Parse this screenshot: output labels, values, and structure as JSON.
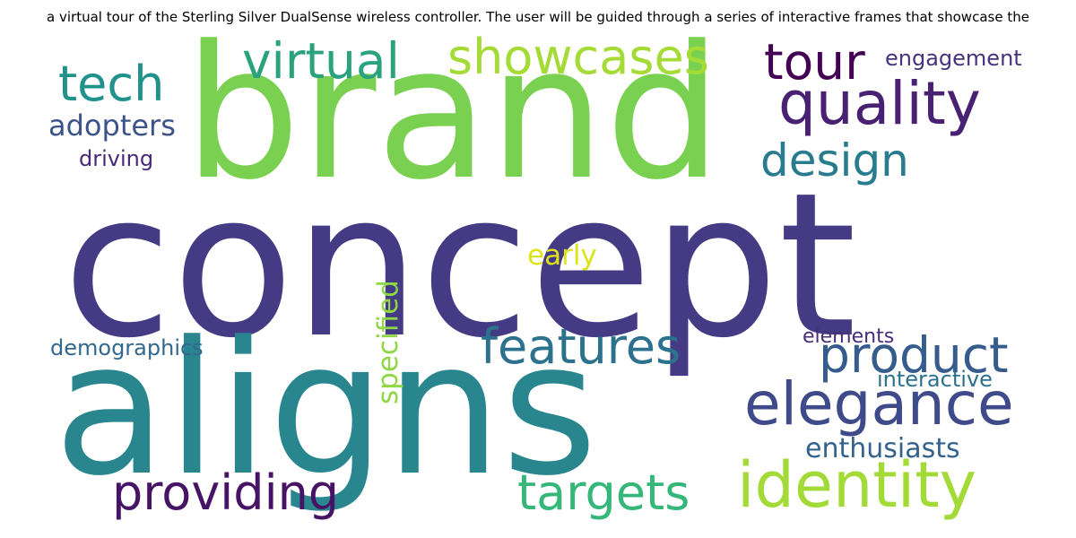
{
  "caption": "a virtual tour of the Sterling Silver DualSense wireless controller. The user will be guided through a series of interactive frames that showcase the",
  "words": [
    {
      "id": "brand",
      "text": "brand",
      "color": "#7ad151"
    },
    {
      "id": "concept",
      "text": "concept",
      "color": "#443b84"
    },
    {
      "id": "aligns",
      "text": "aligns",
      "color": "#29868e"
    },
    {
      "id": "identity",
      "text": "identity",
      "color": "#a2da37"
    },
    {
      "id": "elegance",
      "text": "elegance",
      "color": "#3e4a89"
    },
    {
      "id": "quality",
      "text": "quality",
      "color": "#482173"
    },
    {
      "id": "product",
      "text": "product",
      "color": "#365c8d"
    },
    {
      "id": "features",
      "text": "features",
      "color": "#2c728e"
    },
    {
      "id": "providing",
      "text": "providing",
      "color": "#471365"
    },
    {
      "id": "targets",
      "text": "targets",
      "color": "#35b779"
    },
    {
      "id": "virtual",
      "text": "virtual",
      "color": "#2aa27e"
    },
    {
      "id": "showcases",
      "text": "showcases",
      "color": "#a5db36"
    },
    {
      "id": "tech",
      "text": "tech",
      "color": "#21918c"
    },
    {
      "id": "tour",
      "text": "tour",
      "color": "#440154"
    },
    {
      "id": "design",
      "text": "design",
      "color": "#287c8e"
    },
    {
      "id": "adopters",
      "text": "adopters",
      "color": "#3b528b"
    },
    {
      "id": "driving",
      "text": "driving",
      "color": "#482878"
    },
    {
      "id": "engagement",
      "text": "engagement",
      "color": "#46337e"
    },
    {
      "id": "early",
      "text": "early",
      "color": "#dde318"
    },
    {
      "id": "specified",
      "text": "specified",
      "color": "#8fd744"
    },
    {
      "id": "demographics",
      "text": "demographics",
      "color": "#31688e"
    },
    {
      "id": "elements",
      "text": "elements",
      "color": "#472d7b"
    },
    {
      "id": "interactive",
      "text": "interactive",
      "color": "#2c718e"
    },
    {
      "id": "enthusiasts",
      "text": "enthusiasts",
      "color": "#33638d"
    }
  ]
}
